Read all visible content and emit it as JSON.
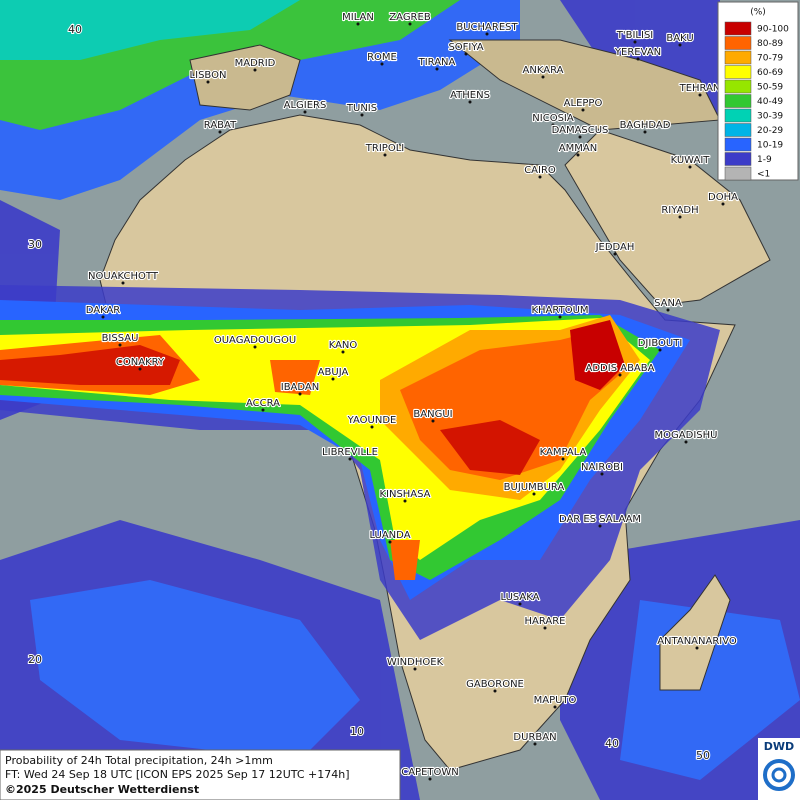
{
  "legend": {
    "title": "(%)",
    "items": [
      {
        "label": "90-100",
        "color": "#c80000"
      },
      {
        "label": "80-89",
        "color": "#ff6400"
      },
      {
        "label": "70-79",
        "color": "#ffaa00"
      },
      {
        "label": "60-69",
        "color": "#ffff00"
      },
      {
        "label": "50-59",
        "color": "#96e600"
      },
      {
        "label": "40-49",
        "color": "#32c832"
      },
      {
        "label": "30-39",
        "color": "#00d2b4"
      },
      {
        "label": "20-29",
        "color": "#00b4e6"
      },
      {
        "label": "10-19",
        "color": "#2864ff"
      },
      {
        "label": "1-9",
        "color": "#3c3cc8"
      },
      {
        "label": "<1",
        "color": "#b4b4b4"
      }
    ]
  },
  "cities": [
    "MILAN",
    "ZAGREB",
    "BUCHAREST",
    "SOFIYA",
    "LISBON",
    "MADRID",
    "ROME",
    "TIRANA",
    "ANKARA",
    "T'BILISI",
    "BAKU",
    "YEREVAN",
    "TEHRAN",
    "ATHENS",
    "ALGIERS",
    "TUNIS",
    "ALEPPO",
    "RABAT",
    "NICOSIA",
    "BAGHDAD",
    "DAMASCUS",
    "AMMAN",
    "TRIPOLI",
    "KUWAIT",
    "CAIRO",
    "DOHA",
    "RIYADH",
    "JEDDAH",
    "NOUAKCHOTT",
    "SANA",
    "DAKAR",
    "KHARTOUM",
    "BISSAU",
    "OUAGADOUGOU",
    "KANO",
    "DJIBOUTI",
    "CONAKRY",
    "ABUJA",
    "ADDIS ABABA",
    "IBADAN",
    "ACCRA",
    "BANGUI",
    "YAOUNDE",
    "MOGADISHU",
    "LIBREVILLE",
    "KAMPALA",
    "NAIROBI",
    "BUJUMBURA",
    "KINSHASA",
    "DAR ES SALAAM",
    "LUANDA",
    "LUSAKA",
    "HARARE",
    "ANTANANARIVO",
    "WINDHOEK",
    "GABORONE",
    "MAPUTO",
    "DURBAN",
    "CAPETOWN"
  ],
  "graticule_labels": [
    40,
    30,
    20,
    10,
    40,
    50
  ],
  "footer": {
    "line1": "Probability of 24h Total precipitation, 24h >1mm",
    "line2": "FT: Wed 24 Sep 18 UTC [ICON EPS 2025 Sep 17 12UTC +174h]",
    "line3": "©2025 Deutscher Wetterdienst"
  },
  "logo": "DWD"
}
